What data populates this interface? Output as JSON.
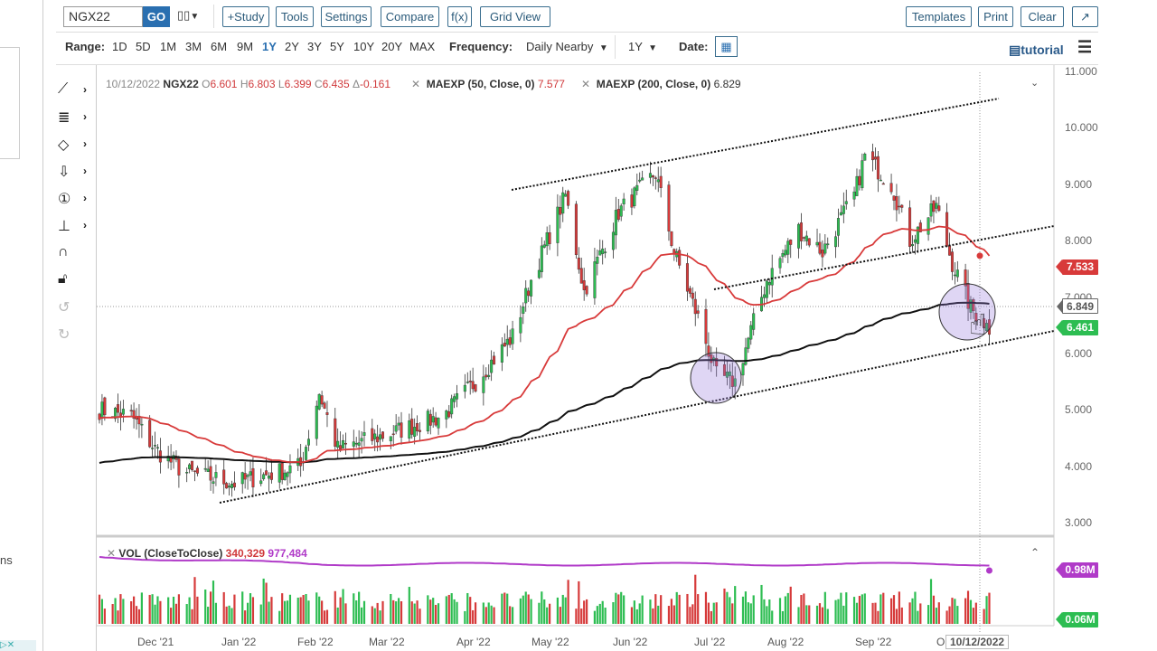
{
  "toolbar": {
    "symbol": "NGX22",
    "go": "GO",
    "study": "+Study",
    "tools": "Tools",
    "settings": "Settings",
    "compare": "Compare",
    "fx": "f(x)",
    "grid_view": "Grid View",
    "templates": "Templates",
    "print": "Print",
    "clear": "Clear"
  },
  "range": {
    "label": "Range:",
    "options": [
      "1D",
      "5D",
      "1M",
      "3M",
      "6M",
      "9M",
      "1Y",
      "2Y",
      "3Y",
      "5Y",
      "10Y",
      "20Y",
      "MAX"
    ],
    "selected": "1Y",
    "frequency_label": "Frequency:",
    "frequency": "Daily Nearby",
    "period": "1Y",
    "date_label": "Date:",
    "tutorial": "tutorial"
  },
  "legend": {
    "date": "10/12/2022",
    "symbol": "NGX22",
    "open_l": "O",
    "open": "6.601",
    "high_l": "H",
    "high": "6.803",
    "low_l": "L",
    "low": "6.399",
    "close_l": "C",
    "close": "6.435",
    "change_l": "Δ",
    "change": "-0.161",
    "ma50": "MAEXP (50, Close, 0)",
    "ma50_val": "7.577",
    "ma200": "MAEXP (200, Close, 0)",
    "ma200_val": "6.829"
  },
  "vol_legend": {
    "name": "VOL (CloseToClose)",
    "v1": "340,329",
    "v2": "977,484"
  },
  "price_axis": [
    "11.000",
    "10.000",
    "9.000",
    "8.000",
    "7.000",
    "6.000",
    "5.000",
    "4.000",
    "3.000"
  ],
  "tags": {
    "ma50": "7.533",
    "crosshair": "6.849",
    "last": "6.461",
    "vol_line": "0.98M",
    "vol_bar": "0.06M"
  },
  "x_axis": [
    "Dec '21",
    "Jan '22",
    "Feb '22",
    "Mar '22",
    "Apr '22",
    "May '22",
    "Jun '22",
    "Jul '22",
    "Aug '22",
    "Sep '22",
    "O"
  ],
  "crosshair_date": "10/12/2022",
  "side_text": "ns",
  "colors": {
    "up": "#2dbd52",
    "down": "#d63a3a",
    "ma50": "#d83a3a",
    "ma200": "#111111",
    "vol": "#b03ac8",
    "accent": "#2a6fb0"
  },
  "chart_data": {
    "type": "candlestick",
    "symbol": "NGX22",
    "approx_close_path": [
      [
        "2021-11-10",
        5.0
      ],
      [
        "2021-11-22",
        4.9
      ],
      [
        "2021-12-01",
        4.3
      ],
      [
        "2021-12-12",
        3.9
      ],
      [
        "2021-12-31",
        3.7
      ],
      [
        "2022-01-25",
        4.0
      ],
      [
        "2022-02-01",
        5.3
      ],
      [
        "2022-02-08",
        4.3
      ],
      [
        "2022-03-01",
        4.6
      ],
      [
        "2022-03-20",
        4.9
      ],
      [
        "2022-04-01",
        5.5
      ],
      [
        "2022-04-15",
        6.3
      ],
      [
        "2022-04-22",
        7.3
      ],
      [
        "2022-05-05",
        8.8
      ],
      [
        "2022-05-12",
        7.1
      ],
      [
        "2022-05-25",
        8.5
      ],
      [
        "2022-06-08",
        9.2
      ],
      [
        "2022-06-15",
        7.8
      ],
      [
        "2022-06-25",
        6.5
      ],
      [
        "2022-07-01",
        5.6
      ],
      [
        "2022-07-08",
        5.5
      ],
      [
        "2022-07-20",
        7.3
      ],
      [
        "2022-08-01",
        8.2
      ],
      [
        "2022-08-10",
        7.8
      ],
      [
        "2022-08-22",
        8.8
      ],
      [
        "2022-08-26",
        9.5
      ],
      [
        "2022-09-05",
        9.0
      ],
      [
        "2022-09-12",
        8.0
      ],
      [
        "2022-09-22",
        8.6
      ],
      [
        "2022-09-28",
        7.6
      ],
      [
        "2022-10-05",
        6.8
      ],
      [
        "2022-10-12",
        6.45
      ]
    ],
    "ylim": [
      3,
      11
    ]
  }
}
